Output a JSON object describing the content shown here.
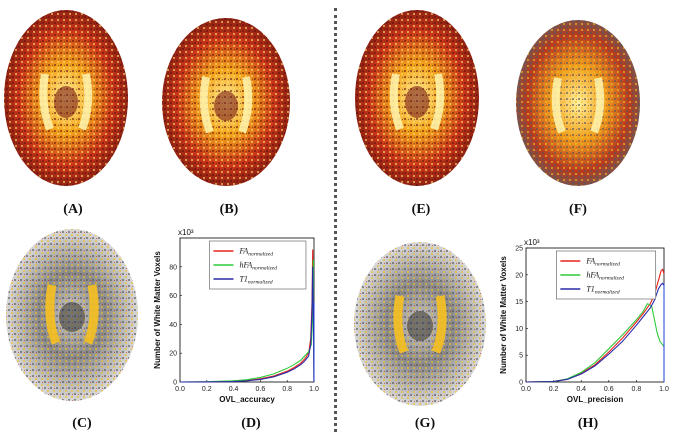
{
  "panels": {
    "A": "(A)",
    "B": "(B)",
    "C": "(C)",
    "D": "(D)",
    "E": "(E)",
    "F": "(F)",
    "G": "(G)",
    "H": "(H)"
  },
  "colors": {
    "fa": "#e8231b",
    "hfa": "#2ecc3a",
    "t1": "#2a2aa8",
    "edge": "#1f3fd8"
  },
  "chart_data": [
    {
      "type": "line",
      "panel": "D",
      "xlabel": "OVL_accuracy",
      "ylabel": "Number of White Matter Voxels",
      "y_multiplier": "x10³",
      "xlim": [
        0.0,
        1.0
      ],
      "ylim": [
        0,
        100
      ],
      "xticks": [
        "0.0",
        "0.2",
        "0.4",
        "0.6",
        "0.8",
        "1.0"
      ],
      "yticks": [
        "0",
        "20",
        "40",
        "60",
        "80"
      ],
      "legend_position": "top-right",
      "series": [
        {
          "name": "FA_normalized",
          "label_main": "FA",
          "label_sub": "normalized",
          "color": "#e8231b",
          "x": [
            0.0,
            0.2,
            0.4,
            0.5,
            0.6,
            0.7,
            0.8,
            0.85,
            0.9,
            0.93,
            0.96,
            0.975,
            0.985,
            0.99,
            0.995,
            1.0
          ],
          "y": [
            0,
            0.1,
            0.4,
            1.0,
            2.2,
            4.2,
            7.5,
            10,
            13,
            16,
            20,
            30,
            55,
            92,
            60,
            0
          ]
        },
        {
          "name": "hFA_normalized",
          "label_main": "hFA",
          "label_sub": "normalized",
          "color": "#2ecc3a",
          "x": [
            0.0,
            0.2,
            0.4,
            0.5,
            0.6,
            0.7,
            0.8,
            0.85,
            0.9,
            0.93,
            0.96,
            0.98,
            0.99,
            0.995,
            1.0
          ],
          "y": [
            0,
            0.2,
            0.8,
            1.6,
            3.2,
            5.6,
            9.5,
            12,
            15,
            18,
            21,
            26,
            45,
            85,
            0
          ]
        },
        {
          "name": "T1_normalized",
          "label_main": "T1",
          "label_sub": "normalized",
          "color": "#2a2aa8",
          "x": [
            0.0,
            0.2,
            0.4,
            0.5,
            0.6,
            0.7,
            0.8,
            0.85,
            0.9,
            0.93,
            0.96,
            0.975,
            0.985,
            0.99,
            0.995,
            1.0
          ],
          "y": [
            0,
            0.1,
            0.3,
            0.8,
            1.8,
            3.6,
            6.8,
            9,
            12,
            14.5,
            18,
            26,
            48,
            80,
            55,
            0
          ]
        }
      ]
    },
    {
      "type": "line",
      "panel": "H",
      "xlabel": "OVL_precision",
      "ylabel": "Number of White Matter Voxels",
      "y_multiplier": "x10³",
      "xlim": [
        0.0,
        1.0
      ],
      "ylim": [
        0,
        25
      ],
      "xticks": [
        "0.0",
        "0.2",
        "0.4",
        "0.6",
        "0.8",
        "1.0"
      ],
      "yticks": [
        "0",
        "5",
        "10",
        "15",
        "20",
        "25"
      ],
      "legend_position": "top-right",
      "series": [
        {
          "name": "FA_normalized",
          "label_main": "FA",
          "label_sub": "normalized",
          "color": "#e8231b",
          "x": [
            0.0,
            0.2,
            0.3,
            0.4,
            0.5,
            0.6,
            0.7,
            0.8,
            0.85,
            0.9,
            0.93,
            0.96,
            0.98,
            0.99,
            1.0
          ],
          "y": [
            0,
            0.1,
            0.5,
            1.6,
            3.2,
            5.6,
            8.2,
            11.2,
            12.8,
            14.6,
            16.2,
            19,
            20.8,
            21,
            20.2
          ]
        },
        {
          "name": "hFA_normalized",
          "label_main": "hFA",
          "label_sub": "normalized",
          "color": "#2ecc3a",
          "x": [
            0.0,
            0.2,
            0.3,
            0.4,
            0.5,
            0.6,
            0.7,
            0.8,
            0.85,
            0.88,
            0.91,
            0.93,
            0.95,
            0.97,
            1.0
          ],
          "y": [
            0,
            0.1,
            0.6,
            1.8,
            3.6,
            6.2,
            8.8,
            11.6,
            13.2,
            14.6,
            14.2,
            11.8,
            9.2,
            7.6,
            6.6
          ]
        },
        {
          "name": "T1_normalized",
          "label_main": "T1",
          "label_sub": "normalized",
          "color": "#2a2aa8",
          "x": [
            0.0,
            0.2,
            0.3,
            0.4,
            0.5,
            0.6,
            0.7,
            0.8,
            0.85,
            0.9,
            0.93,
            0.96,
            0.98,
            0.99,
            1.0
          ],
          "y": [
            0,
            0.1,
            0.5,
            1.5,
            3.0,
            5.2,
            7.6,
            10.6,
            12.2,
            13.8,
            15.2,
            17.4,
            18.2,
            18.4,
            18.0
          ]
        }
      ]
    }
  ]
}
